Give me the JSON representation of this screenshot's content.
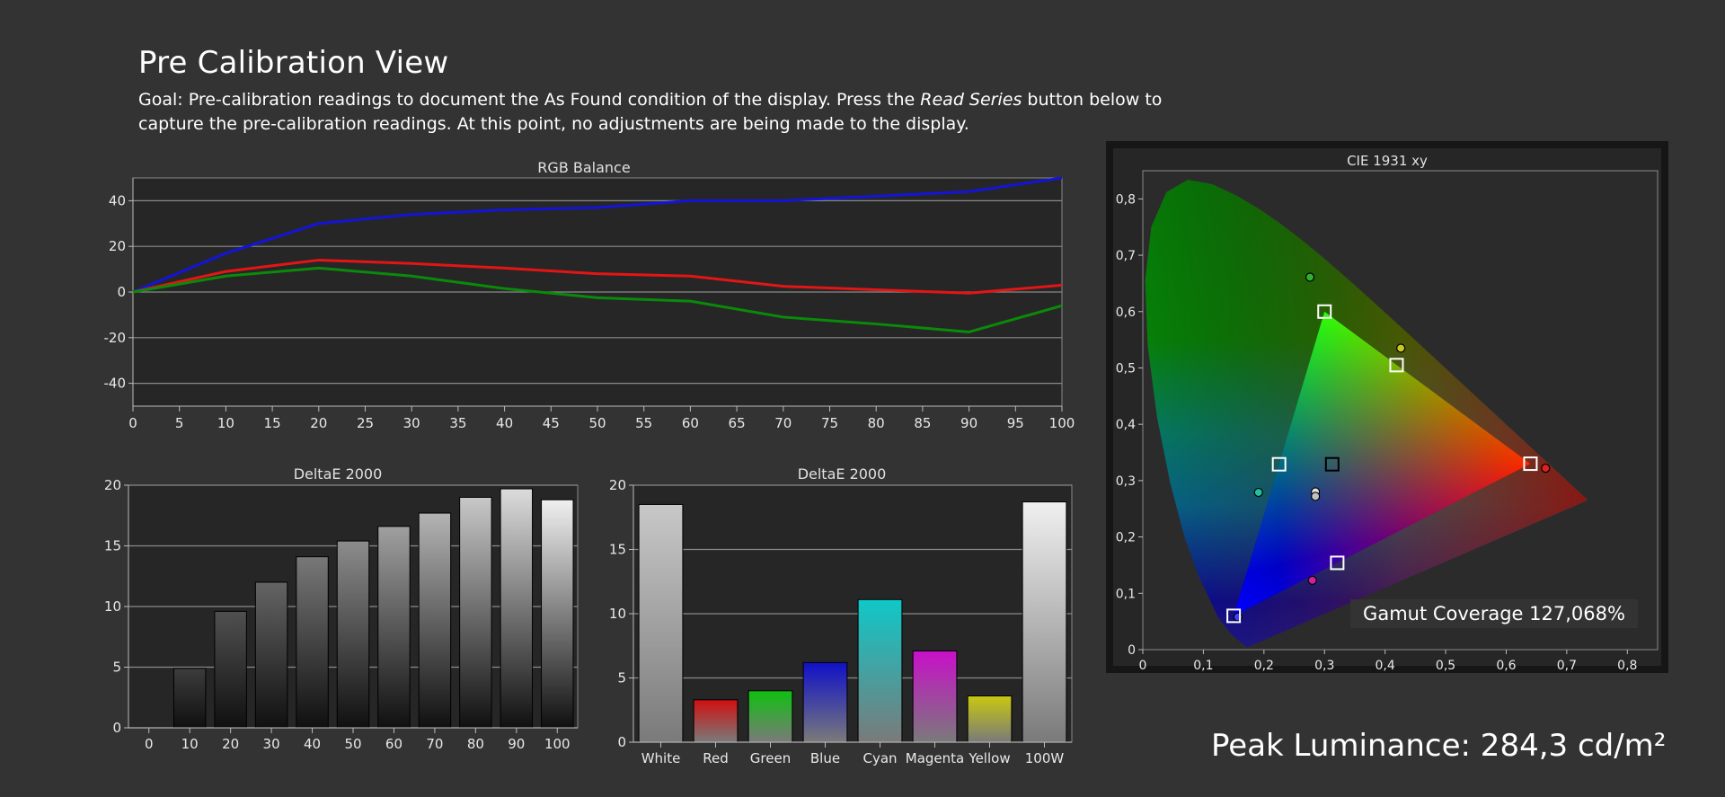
{
  "header": {
    "title": "Pre Calibration View",
    "goal_prefix": "Goal: Pre-calibration readings to document the As Found condition of the display. Press the ",
    "goal_emphasis": "Read Series",
    "goal_suffix": " button below to capture the pre-calibration readings. At this point, no adjustments are being made to the display."
  },
  "peak_luminance": "Peak Luminance: 284,3 cd/m²",
  "colors": {
    "background": "#333333",
    "plot_background": "#252525",
    "red": "#e31515",
    "green": "#0a8a0a",
    "blue": "#1414d8"
  },
  "chart_data": [
    {
      "type": "line",
      "title": "RGB Balance",
      "x": [
        0,
        10,
        20,
        30,
        40,
        50,
        60,
        70,
        80,
        90,
        100
      ],
      "xticks": [
        "0",
        "5",
        "10",
        "15",
        "20",
        "25",
        "30",
        "35",
        "40",
        "45",
        "50",
        "55",
        "60",
        "65",
        "70",
        "75",
        "80",
        "85",
        "90",
        "95",
        "100"
      ],
      "xlim": [
        0,
        100
      ],
      "ylim": [
        -50,
        50
      ],
      "yticks": [
        "40",
        "20",
        "0",
        "-20",
        "-40"
      ],
      "series": [
        {
          "color": "#1414d8",
          "values": [
            0,
            17,
            30,
            34,
            36,
            37,
            40,
            40,
            42,
            44,
            50
          ]
        },
        {
          "color": "#e31515",
          "values": [
            0,
            9,
            14,
            12.5,
            10.5,
            8,
            7,
            2.5,
            1,
            -0.5,
            3
          ]
        },
        {
          "color": "#0a8a0a",
          "values": [
            0,
            7,
            10.5,
            7,
            1.5,
            -2.5,
            -4,
            -11,
            -14,
            -17.5,
            -6
          ]
        }
      ],
      "grid": true
    },
    {
      "type": "bar",
      "title": "DeltaE 2000",
      "categories": [
        "0",
        "10",
        "20",
        "30",
        "40",
        "50",
        "60",
        "70",
        "80",
        "90",
        "100"
      ],
      "values": [
        0,
        4.9,
        9.6,
        12,
        14.1,
        15.4,
        16.6,
        17.7,
        19,
        19.7,
        18.8
      ],
      "ylim": [
        0,
        20
      ],
      "yticks": [
        "20",
        "15",
        "10",
        "5",
        "0"
      ],
      "grid": true
    },
    {
      "type": "bar",
      "title": "DeltaE 2000",
      "categories": [
        "White",
        "Red",
        "Green",
        "Blue",
        "Cyan",
        "Magenta",
        "Yellow",
        "100W"
      ],
      "values": [
        18.5,
        3.3,
        4,
        6.2,
        11.1,
        7.1,
        3.6,
        18.7
      ],
      "bar_colors": [
        "#c8c8c8",
        "#d01010",
        "#10c010",
        "#1010c8",
        "#10c8c8",
        "#c810c8",
        "#c8c810",
        "#f0f0f0"
      ],
      "ylim": [
        0,
        20
      ],
      "yticks": [
        "20",
        "15",
        "10",
        "5",
        "0"
      ],
      "grid": true
    },
    {
      "type": "scatter",
      "title": "CIE 1931 xy",
      "xlim": [
        0,
        0.85
      ],
      "ylim": [
        0,
        0.85
      ],
      "xticks": [
        "0",
        "0,1",
        "0,2",
        "0,3",
        "0,4",
        "0,5",
        "0,6",
        "0,7",
        "0,8"
      ],
      "yticks": [
        "0,8",
        "0,7",
        "0,6",
        "0,5",
        "0,4",
        "0,3",
        "0,2",
        "0,1",
        "0"
      ],
      "targets": [
        {
          "name": "Red",
          "x": 0.64,
          "y": 0.33
        },
        {
          "name": "Green",
          "x": 0.3,
          "y": 0.6
        },
        {
          "name": "Blue",
          "x": 0.15,
          "y": 0.06
        },
        {
          "name": "Cyan",
          "x": 0.225,
          "y": 0.329
        },
        {
          "name": "Magenta",
          "x": 0.321,
          "y": 0.154
        },
        {
          "name": "Yellow",
          "x": 0.419,
          "y": 0.505
        },
        {
          "name": "White",
          "x": 0.3127,
          "y": 0.329
        }
      ],
      "measured": [
        {
          "name": "Red",
          "x": 0.665,
          "y": 0.322,
          "color": "#e02020"
        },
        {
          "name": "Green",
          "x": 0.276,
          "y": 0.661,
          "color": "#30b030"
        },
        {
          "name": "Blue",
          "x": 0.157,
          "y": 0.058,
          "color": "#4040ff"
        },
        {
          "name": "Cyan",
          "x": 0.191,
          "y": 0.279,
          "color": "#20c0a0"
        },
        {
          "name": "Magenta",
          "x": 0.28,
          "y": 0.123,
          "color": "#d020a0"
        },
        {
          "name": "Yellow",
          "x": 0.426,
          "y": 0.535,
          "color": "#c8c820"
        },
        {
          "name": "White",
          "x": 0.285,
          "y": 0.28,
          "color": "#e0e0e0"
        },
        {
          "name": "100W",
          "x": 0.285,
          "y": 0.272,
          "color": "#c0c0c0"
        }
      ],
      "gamut_label": "Gamut Coverage 127,068%"
    }
  ]
}
